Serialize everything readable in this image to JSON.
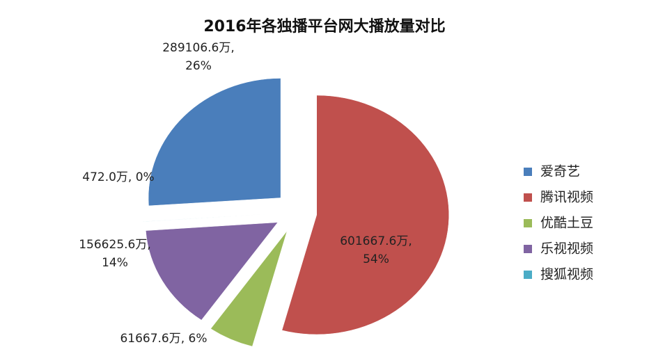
{
  "chart_data": {
    "type": "pie",
    "title": "2016年各独播平台网大播放量对比",
    "categories": [
      "爱奇艺",
      "腾讯视频",
      "优酷土豆",
      "乐视视频",
      "搜狐视频"
    ],
    "values": [
      289106.6,
      601667.6,
      61667.6,
      156625.6,
      472.0
    ],
    "value_labels": [
      "289106.6万, 26%",
      "601667.6万, 54%",
      "61667.6万, 6%",
      "156625.6万, 14%",
      "472.0万, 0%"
    ],
    "colors": [
      "#4a7ebb",
      "#c0504d",
      "#9bbb59",
      "#8064a2",
      "#4bacc6"
    ],
    "legend": "right"
  }
}
